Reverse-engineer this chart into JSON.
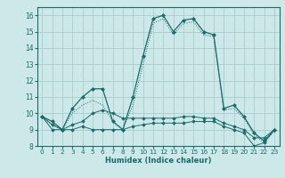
{
  "xlabel": "Humidex (Indice chaleur)",
  "bg_color": "#cde8e8",
  "grid_color": "#a8cccc",
  "line_color": "#1a6b6b",
  "x": [
    0,
    1,
    2,
    3,
    4,
    5,
    6,
    7,
    8,
    9,
    10,
    11,
    12,
    13,
    14,
    15,
    16,
    17,
    18,
    19,
    20,
    21,
    22,
    23
  ],
  "series1": [
    9.8,
    9.5,
    9.0,
    10.3,
    11.0,
    11.5,
    11.5,
    9.5,
    9.0,
    11.0,
    13.5,
    15.8,
    16.0,
    15.0,
    15.7,
    15.8,
    15.0,
    14.8,
    10.3,
    10.5,
    9.8,
    8.8,
    8.3,
    9.0
  ],
  "series2": [
    9.8,
    9.3,
    9.0,
    10.0,
    10.5,
    10.8,
    10.5,
    9.5,
    9.0,
    10.5,
    13.0,
    15.5,
    15.8,
    14.8,
    15.5,
    15.6,
    14.8,
    14.7,
    10.2,
    10.3,
    9.7,
    8.7,
    8.2,
    8.9
  ],
  "series3": [
    9.8,
    9.0,
    9.0,
    9.0,
    9.2,
    9.0,
    9.0,
    9.0,
    9.0,
    9.2,
    9.3,
    9.4,
    9.4,
    9.4,
    9.4,
    9.5,
    9.5,
    9.5,
    9.2,
    9.0,
    8.8,
    8.0,
    8.2,
    9.0
  ],
  "series4": [
    9.8,
    9.3,
    9.0,
    9.3,
    9.5,
    10.0,
    10.2,
    10.0,
    9.7,
    9.7,
    9.7,
    9.7,
    9.7,
    9.7,
    9.8,
    9.8,
    9.7,
    9.7,
    9.4,
    9.2,
    9.0,
    8.5,
    8.5,
    9.0
  ],
  "ylim": [
    8,
    16.5
  ],
  "xlim": [
    -0.5,
    23.5
  ],
  "yticks": [
    8,
    9,
    10,
    11,
    12,
    13,
    14,
    15,
    16
  ],
  "xticks": [
    0,
    1,
    2,
    3,
    4,
    5,
    6,
    7,
    8,
    9,
    10,
    11,
    12,
    13,
    14,
    15,
    16,
    17,
    18,
    19,
    20,
    21,
    22,
    23
  ],
  "xlabel_fontsize": 6.0,
  "tick_fontsize": 5.2
}
